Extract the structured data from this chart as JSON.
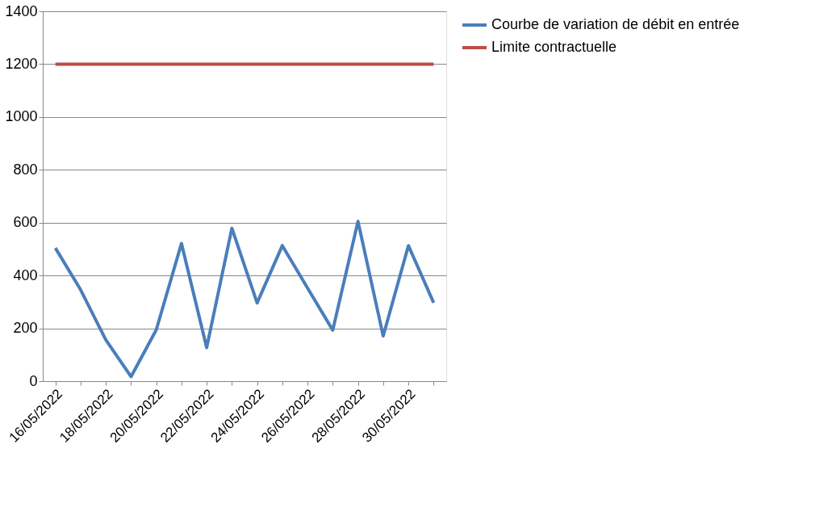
{
  "chart_data": {
    "type": "line",
    "categories": [
      "16/05/2022",
      null,
      "18/05/2022",
      null,
      "20/05/2022",
      null,
      "22/05/2022",
      null,
      "24/05/2022",
      null,
      "26/05/2022",
      null,
      "28/05/2022",
      null,
      "30/05/2022",
      null
    ],
    "series": [
      {
        "name": "Courbe de variation de débit en entrée",
        "color": "#4a7ebb",
        "values": [
          504,
          346,
          156,
          17,
          194,
          521,
          127,
          579,
          296,
          513,
          352,
          193,
          605,
          171,
          513,
          297
        ]
      },
      {
        "name": "Limite contractuelle",
        "color": "#be4b48",
        "values": [
          1200,
          1200,
          1200,
          1200,
          1200,
          1200,
          1200,
          1200,
          1200,
          1200,
          1200,
          1200,
          1200,
          1200,
          1200,
          1200
        ]
      }
    ],
    "ylim": [
      0,
      1400
    ],
    "yticks": [
      0,
      200,
      400,
      600,
      800,
      1000,
      1200,
      1400
    ],
    "grid": "y",
    "legend": "right",
    "marker": "none",
    "line_style": "solid"
  }
}
